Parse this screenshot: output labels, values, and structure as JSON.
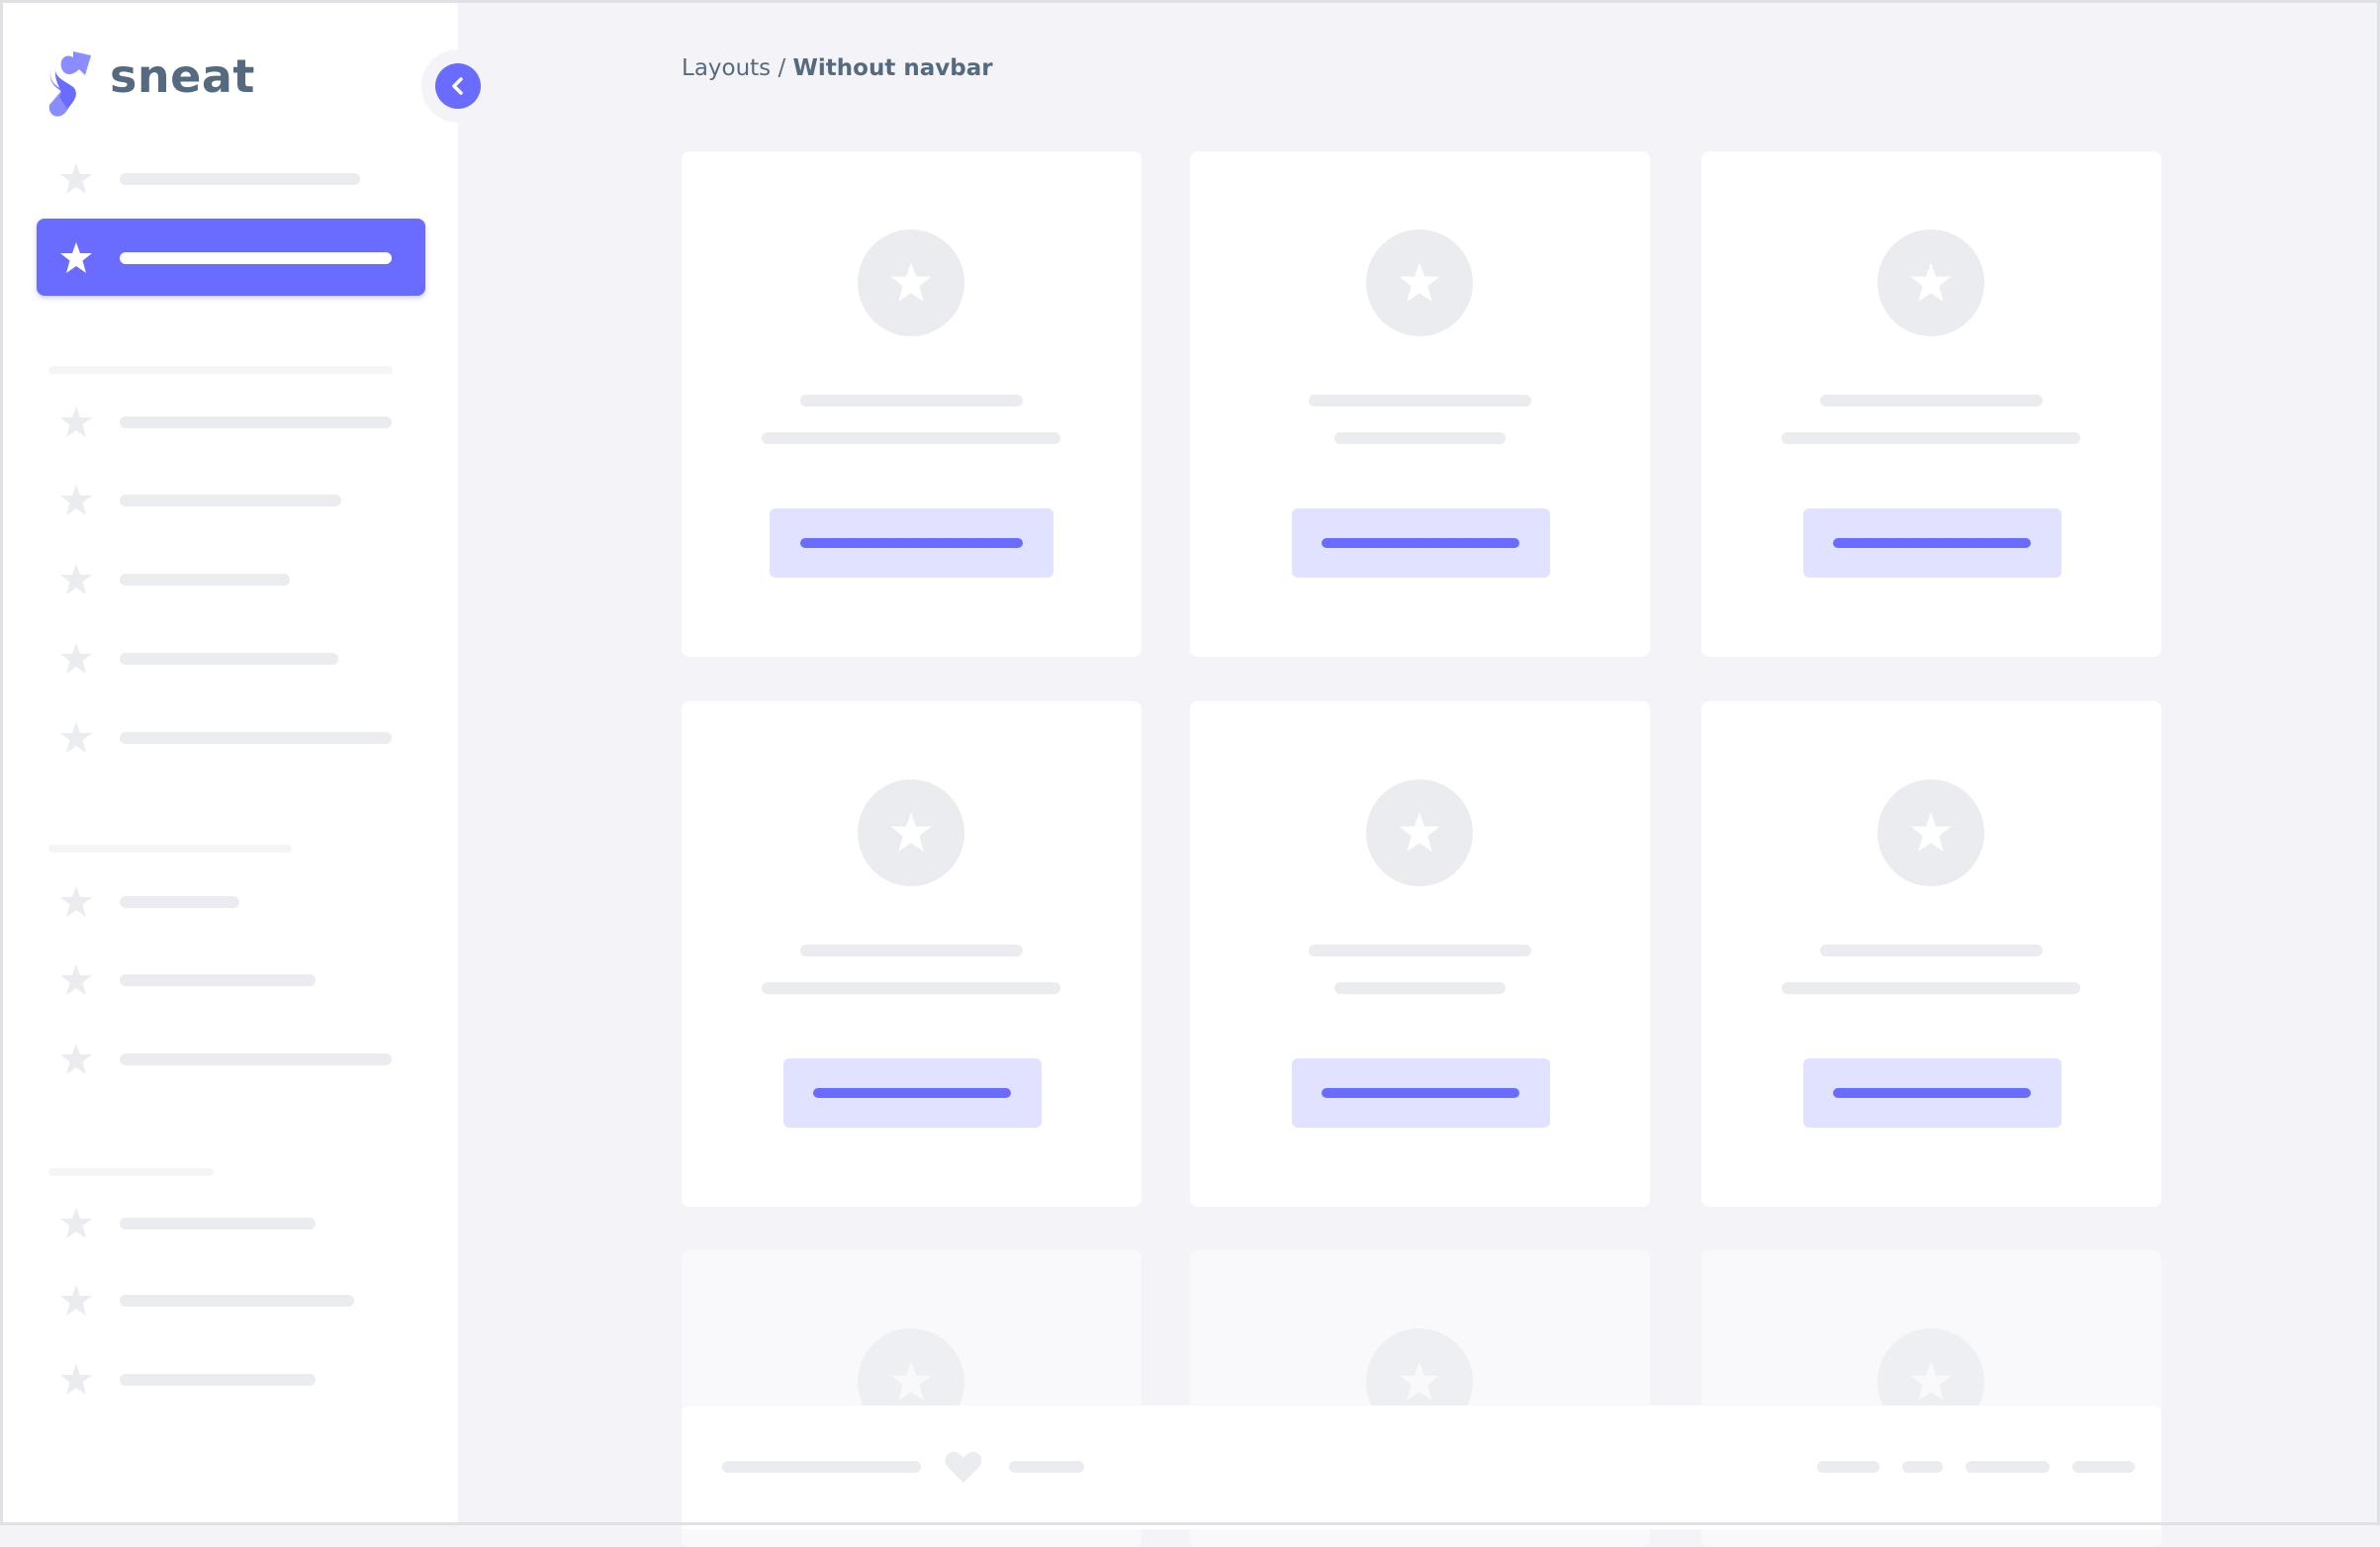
{
  "brand": {
    "name": "sneat",
    "logo_icon": "sneat-logo-icon"
  },
  "sidebar": {
    "toggle_icon": "chevron-left-icon",
    "items": [
      {
        "icon": "star-icon",
        "active": false
      },
      {
        "icon": "star-icon",
        "active": true
      },
      {
        "icon": "star-icon",
        "active": false
      },
      {
        "icon": "star-icon",
        "active": false
      },
      {
        "icon": "star-icon",
        "active": false
      },
      {
        "icon": "star-icon",
        "active": false
      },
      {
        "icon": "star-icon",
        "active": false
      },
      {
        "icon": "star-icon",
        "active": false
      },
      {
        "icon": "star-icon",
        "active": false
      },
      {
        "icon": "star-icon",
        "active": false
      },
      {
        "icon": "star-icon",
        "active": false
      },
      {
        "icon": "star-icon",
        "active": false
      },
      {
        "icon": "star-icon",
        "active": false
      }
    ]
  },
  "breadcrumb": {
    "parent": "Layouts",
    "separator": " / ",
    "current": "Without navbar"
  },
  "cards": [
    {
      "icon": "star-icon"
    },
    {
      "icon": "star-icon"
    },
    {
      "icon": "star-icon"
    },
    {
      "icon": "star-icon"
    },
    {
      "icon": "star-icon"
    },
    {
      "icon": "star-icon"
    },
    {
      "icon": "star-icon"
    },
    {
      "icon": "star-icon"
    },
    {
      "icon": "star-icon"
    }
  ],
  "footer": {
    "icon": "heart-icon"
  },
  "colors": {
    "primary": "#696cff",
    "primary_light": "#e1e2ff",
    "placeholder": "#ebecef",
    "background": "#f4f4f8",
    "text": "#566a7f"
  }
}
